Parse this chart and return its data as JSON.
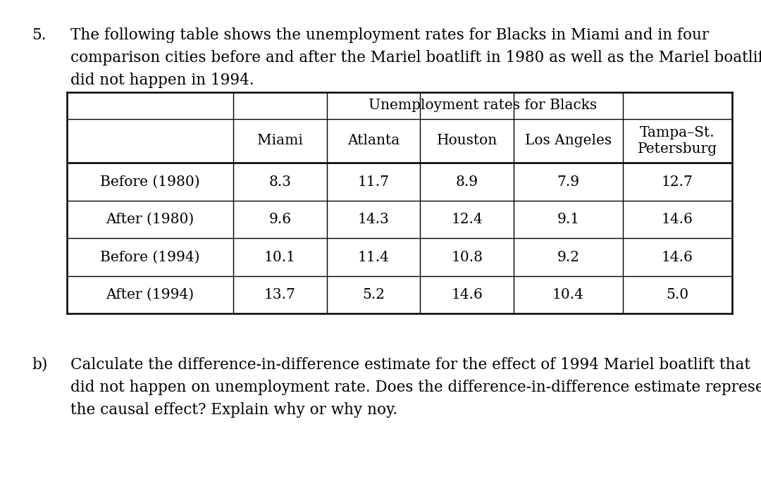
{
  "title_num": "5.",
  "title_line1": "The following table shows the unemployment rates for Blacks in Miami and in four",
  "title_line2": "comparison cities before and after the Mariel boatlift in 1980 as well as the Mariel boatlift that",
  "title_line3": "did not happen in 1994.",
  "table_header_span": "Unemployment rates for Blacks",
  "col_headers": [
    "Miami",
    "Atlanta",
    "Houston",
    "Los Angeles",
    "Tampa–St.\nPetersburg"
  ],
  "row_headers": [
    "Before (1980)",
    "After (1980)",
    "Before (1994)",
    "After (1994)"
  ],
  "data": [
    [
      "8.3",
      "11.7",
      "8.9",
      "7.9",
      "12.7"
    ],
    [
      "9.6",
      "14.3",
      "12.4",
      "9.1",
      "14.6"
    ],
    [
      "10.1",
      "11.4",
      "10.8",
      "9.2",
      "14.6"
    ],
    [
      "13.7",
      "5.2",
      "14.6",
      "10.4",
      "5.0"
    ]
  ],
  "partb_label": "b)",
  "partb_line1": "Calculate the difference-in-difference estimate for the effect of 1994 Mariel boatlift that",
  "partb_line2": "did not happen on unemployment rate. Does the difference-in-difference estimate represent",
  "partb_line3": "the causal effect? Explain why or why noy.",
  "background_color": "#ffffff",
  "text_color": "#000000",
  "fs_body": 15.5,
  "fs_table": 14.5
}
